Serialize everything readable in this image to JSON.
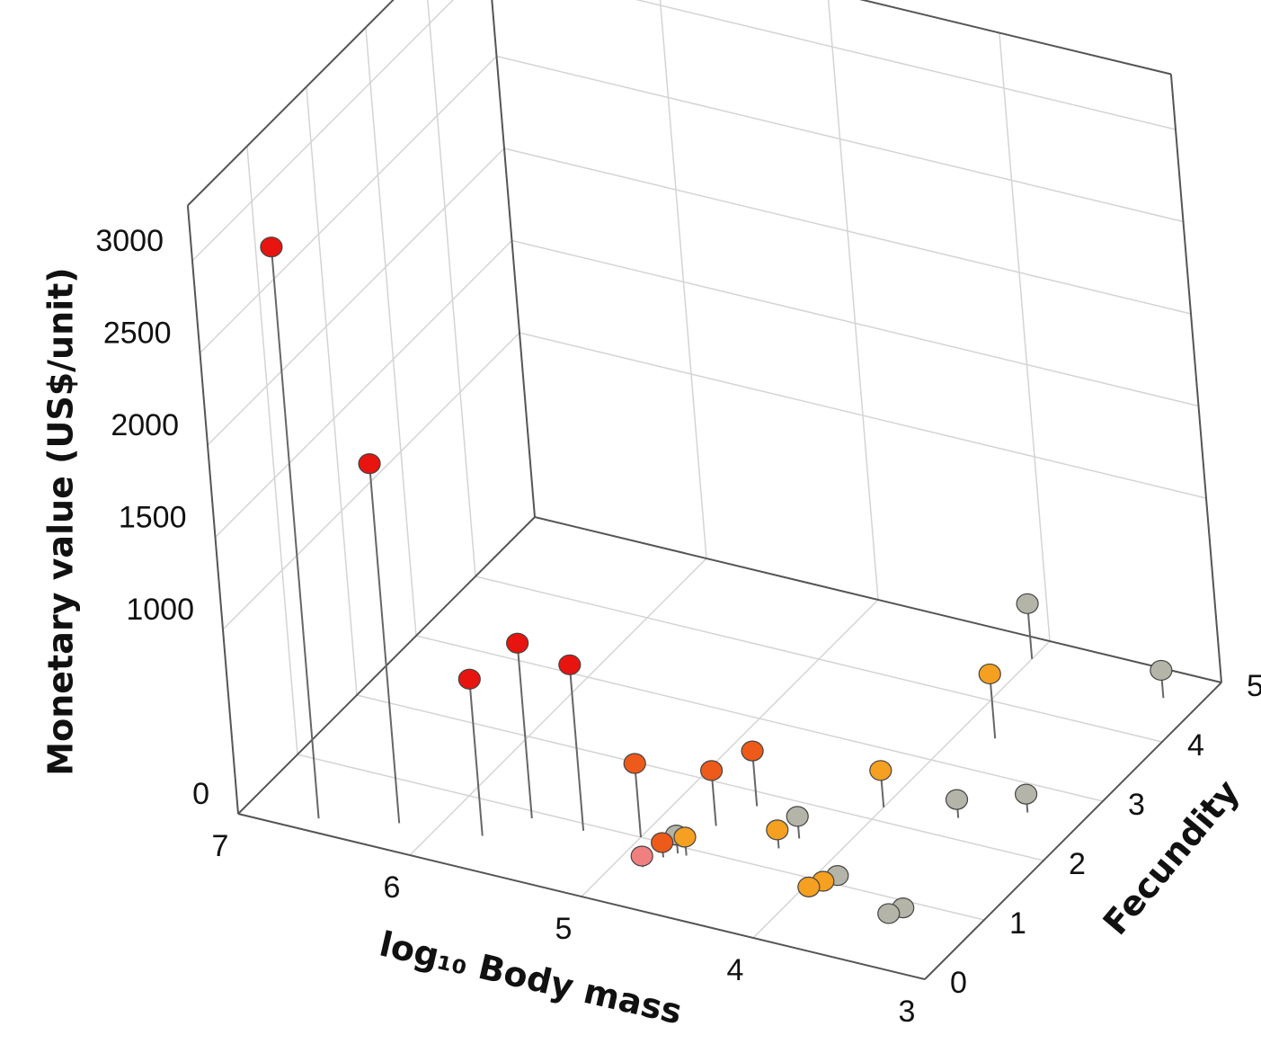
{
  "chart_data": {
    "type": "scatter3d",
    "xlabel": "log₁₀ Body mass",
    "ylabel": "Fecundity",
    "zlabel": "Monetary value (US$/unit)",
    "xlim": [
      7,
      3
    ],
    "ylim": [
      0,
      5
    ],
    "zlim": [
      0,
      3300
    ],
    "xticks": [
      7,
      6,
      5,
      4,
      3
    ],
    "yticks": [
      0,
      1,
      2,
      3,
      4,
      5
    ],
    "zticks": [
      0,
      1000,
      1500,
      2000,
      2500,
      3000
    ],
    "grid": true,
    "x": [
      6.6,
      6.2,
      5.75,
      5.6,
      5.3,
      5.0,
      4.7,
      4.6,
      4.75,
      4.8,
      4.85,
      4.7,
      4.3,
      4.25,
      4.0,
      3.8,
      3.6,
      3.3,
      4.0,
      3.2,
      3.95,
      3.9,
      3.85,
      3.45,
      3.4
    ],
    "y": [
      0.2,
      0.4,
      0.5,
      0.9,
      0.9,
      1.0,
      1.4,
      1.8,
      0.9,
      0.8,
      0.6,
      0.9,
      1.3,
      1.5,
      2.2,
      3.5,
      2.3,
      2.6,
      4.7,
      4.6,
      0.8,
      0.9,
      1.0,
      0.7,
      0.8
    ],
    "z": [
      3100,
      1950,
      850,
      950,
      900,
      400,
      300,
      300,
      100,
      80,
      60,
      100,
      100,
      120,
      200,
      350,
      100,
      100,
      300,
      150,
      30,
      40,
      50,
      30,
      40
    ],
    "colors": [
      "#e8140f",
      "#e8140f",
      "#e8140f",
      "#e8140f",
      "#e8140f",
      "#ee5a1a",
      "#ee5a1a",
      "#ee5a1a",
      "#b4b4a8",
      "#ee5a1a",
      "#f08080",
      "#f5a020",
      "#f5a020",
      "#b4b4a8",
      "#f5a020",
      "#f5a020",
      "#b4b4a8",
      "#b4b4a8",
      "#b4b4a8",
      "#b4b4a8",
      "#f5a020",
      "#f5a020",
      "#b4b4a8",
      "#b4b4a8",
      "#b4b4a8"
    ]
  }
}
